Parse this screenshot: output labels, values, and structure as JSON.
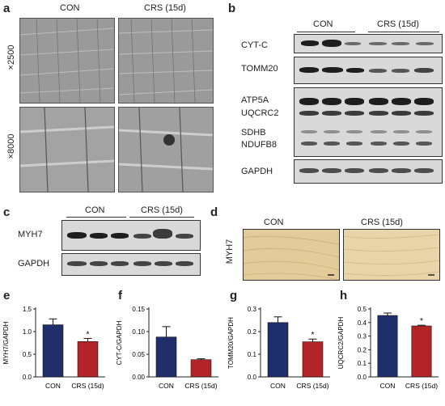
{
  "panels": {
    "a": {
      "label": "a",
      "groups": [
        "CON",
        "CRS (15d)"
      ],
      "magnifications": [
        "×2500",
        "×8000"
      ]
    },
    "b": {
      "label": "b",
      "groups": [
        "CON",
        "CRS (15d)"
      ],
      "proteins": [
        "CYT-C",
        "TOMM20",
        "ATP5A",
        "UQCRC2",
        "SDHB",
        "NDUFB8",
        "GAPDH"
      ]
    },
    "c": {
      "label": "c",
      "groups": [
        "CON",
        "CRS (15d)"
      ],
      "proteins": [
        "MYH7",
        "GAPDH"
      ]
    },
    "d": {
      "label": "d",
      "groups": [
        "CON",
        "CRS (15d)"
      ],
      "stain": "MYH7"
    }
  },
  "chart_data": [
    {
      "panel": "e",
      "type": "bar",
      "categories": [
        "CON",
        "CRS (15d)"
      ],
      "values": [
        1.15,
        0.78
      ],
      "errors": [
        0.13,
        0.07
      ],
      "significance": [
        "",
        "*"
      ],
      "ylabel": "MYH7/GAPDH",
      "ylim": [
        0,
        1.5
      ],
      "yticks": [
        "0.0",
        "0.5",
        "1.0",
        "1.5"
      ],
      "tickvals": [
        0,
        0.5,
        1.0,
        1.5
      ],
      "colors": [
        "#1f2f6b",
        "#b22427"
      ]
    },
    {
      "panel": "f",
      "type": "bar",
      "categories": [
        "CON",
        "CRS (15d)"
      ],
      "values": [
        0.088,
        0.038
      ],
      "errors": [
        0.023,
        0.002
      ],
      "significance": [
        "",
        ""
      ],
      "ylabel": "CYT-C/GAPDH",
      "ylim": [
        0,
        0.15
      ],
      "yticks": [
        "0.00",
        "0.05",
        "0.10",
        "0.15"
      ],
      "tickvals": [
        0,
        0.05,
        0.1,
        0.15
      ],
      "colors": [
        "#1f2f6b",
        "#b22427"
      ]
    },
    {
      "panel": "g",
      "type": "bar",
      "categories": [
        "CON",
        "CRS (15d)"
      ],
      "values": [
        0.24,
        0.155
      ],
      "errors": [
        0.025,
        0.012
      ],
      "significance": [
        "",
        "*"
      ],
      "ylabel": "TOMM20/GAPDH",
      "ylim": [
        0,
        0.3
      ],
      "yticks": [
        "0.0",
        "0.1",
        "0.2",
        "0.3"
      ],
      "tickvals": [
        0,
        0.1,
        0.2,
        0.3
      ],
      "colors": [
        "#1f2f6b",
        "#b22427"
      ]
    },
    {
      "panel": "h",
      "type": "bar",
      "categories": [
        "CON",
        "CRS (15d)"
      ],
      "values": [
        0.452,
        0.375
      ],
      "errors": [
        0.018,
        0.005
      ],
      "significance": [
        "",
        "*"
      ],
      "ylabel": "UQCRC2/GAPDH",
      "ylim": [
        0,
        0.5
      ],
      "yticks": [
        "0.0",
        "0.1",
        "0.2",
        "0.3",
        "0.4",
        "0.5"
      ],
      "tickvals": [
        0,
        0.1,
        0.2,
        0.3,
        0.4,
        0.5
      ],
      "colors": [
        "#1f2f6b",
        "#b22427"
      ]
    }
  ]
}
